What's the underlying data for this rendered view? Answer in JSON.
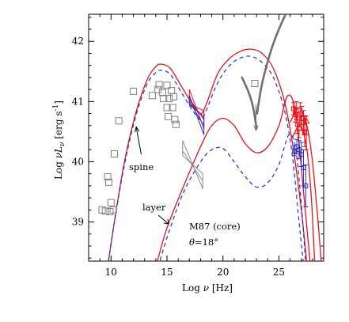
{
  "chart_data": {
    "type": "scatter",
    "title": "",
    "xlabel_prefix": "Log ",
    "xlabel_nu": "ν",
    "xlabel_unit": " [Hz]",
    "ylabel_prefix": "Log ",
    "ylabel_nuL": "νL",
    "ylabel_sub": "ν",
    "ylabel_unit_pre": " [erg s",
    "ylabel_unit_exp": "-1",
    "ylabel_unit_post": "]",
    "xlim": [
      8,
      29
    ],
    "ylim": [
      38.35,
      42.45
    ],
    "x_ticks": [
      10,
      15,
      20,
      25
    ],
    "x_tick_labels": [
      "10",
      "15",
      "20",
      "25"
    ],
    "y_ticks": [
      39,
      40,
      41,
      42
    ],
    "y_tick_labels": [
      "39",
      "40",
      "41",
      "42"
    ],
    "legend": "none",
    "grid": false,
    "colors": {
      "model_total": "#e8101a",
      "model_dashed": "#1f2ed6",
      "data_grey": "#7f7f7f",
      "data_red": "#e8101a",
      "data_blue": "#1f2ed6",
      "axes": "#000000"
    },
    "annotations": {
      "spine": "spine",
      "layer": "layer",
      "source": "M87 (core)",
      "theta_symbol": "θ",
      "theta_value": "=18°"
    },
    "series": [
      {
        "style": "solid-red",
        "points": [
          [
            9.5,
            38.0
          ],
          [
            10.3,
            39.0
          ],
          [
            11.2,
            40.0
          ],
          [
            12.2,
            40.8
          ],
          [
            13.2,
            41.35
          ],
          [
            14.0,
            41.58
          ],
          [
            14.5,
            41.62
          ],
          [
            15.3,
            41.55
          ],
          [
            16.3,
            41.25
          ],
          [
            17.3,
            40.95
          ],
          [
            18.0,
            40.8
          ],
          [
            18.5,
            40.95
          ],
          [
            19.5,
            41.45
          ],
          [
            20.5,
            41.7
          ],
          [
            21.5,
            41.83
          ],
          [
            22.5,
            41.87
          ],
          [
            23.5,
            41.8
          ],
          [
            24.5,
            41.55
          ],
          [
            25.5,
            41.0
          ],
          [
            26.3,
            40.2
          ],
          [
            27.0,
            39.2
          ],
          [
            27.5,
            38.3
          ]
        ]
      },
      {
        "style": "dashed-blue",
        "points": [
          [
            9.5,
            38.0
          ],
          [
            10.3,
            39.0
          ],
          [
            11.2,
            39.95
          ],
          [
            12.2,
            40.75
          ],
          [
            13.2,
            41.28
          ],
          [
            14.0,
            41.48
          ],
          [
            14.5,
            41.52
          ],
          [
            15.3,
            41.45
          ],
          [
            16.3,
            41.15
          ],
          [
            17.3,
            40.85
          ],
          [
            18.0,
            40.7
          ],
          [
            18.5,
            40.85
          ],
          [
            19.5,
            41.3
          ],
          [
            20.5,
            41.58
          ],
          [
            21.5,
            41.72
          ],
          [
            22.5,
            41.75
          ],
          [
            23.5,
            41.65
          ],
          [
            24.5,
            41.4
          ],
          [
            25.5,
            40.85
          ],
          [
            26.2,
            40.1
          ],
          [
            26.8,
            39.0
          ],
          [
            27.2,
            38.3
          ]
        ]
      },
      {
        "style": "solid-red",
        "points": [
          [
            14.0,
            38.25
          ],
          [
            15.0,
            38.9
          ],
          [
            16.5,
            39.6
          ],
          [
            18.0,
            40.25
          ],
          [
            19.0,
            40.6
          ],
          [
            20.0,
            40.72
          ],
          [
            21.0,
            40.6
          ],
          [
            22.0,
            40.3
          ],
          [
            23.0,
            40.15
          ],
          [
            24.0,
            40.25
          ],
          [
            25.0,
            40.6
          ],
          [
            25.8,
            41.1
          ],
          [
            26.5,
            40.8
          ],
          [
            27.2,
            39.5
          ],
          [
            27.8,
            38.3
          ]
        ]
      },
      {
        "style": "dashed-blue",
        "points": [
          [
            14.2,
            38.25
          ],
          [
            15.2,
            38.85
          ],
          [
            16.5,
            39.5
          ],
          [
            18.0,
            40.0
          ],
          [
            19.0,
            40.2
          ],
          [
            20.0,
            40.22
          ],
          [
            21.0,
            40.0
          ],
          [
            22.0,
            39.75
          ],
          [
            23.0,
            39.58
          ],
          [
            24.0,
            39.65
          ],
          [
            25.0,
            39.95
          ],
          [
            25.9,
            40.45
          ],
          [
            26.5,
            40.2
          ],
          [
            27.0,
            39.3
          ],
          [
            27.4,
            38.3
          ]
        ]
      },
      {
        "style": "solid-red",
        "points": [
          [
            26.0,
            40.65
          ],
          [
            26.8,
            40.9
          ],
          [
            27.5,
            40.6
          ],
          [
            28.0,
            40.0
          ],
          [
            28.5,
            39.0
          ],
          [
            28.8,
            38.3
          ]
        ]
      },
      {
        "style": "solid-red",
        "points": [
          [
            26.2,
            40.4
          ],
          [
            26.9,
            40.6
          ],
          [
            27.5,
            40.2
          ],
          [
            27.9,
            39.4
          ],
          [
            28.2,
            38.3
          ]
        ]
      },
      {
        "style": "thick-grey",
        "points": [
          [
            23.05,
            40.8
          ],
          [
            23.5,
            41.3
          ],
          [
            24.3,
            41.85
          ],
          [
            25.0,
            42.2
          ],
          [
            25.6,
            42.45
          ]
        ]
      },
      {
        "style": "thick-grey",
        "points": [
          [
            21.7,
            41.4
          ],
          [
            22.3,
            41.15
          ],
          [
            22.7,
            40.9
          ],
          [
            23.0,
            40.55
          ]
        ]
      }
    ],
    "grey_squares": [
      [
        9.2,
        39.2
      ],
      [
        9.5,
        39.18
      ],
      [
        9.7,
        39.75
      ],
      [
        9.8,
        39.66
      ],
      [
        9.9,
        39.17
      ],
      [
        10.0,
        39.32
      ],
      [
        10.2,
        39.2
      ],
      [
        10.3,
        40.13
      ],
      [
        10.7,
        40.68
      ],
      [
        12.0,
        41.17
      ],
      [
        13.7,
        41.1
      ],
      [
        14.2,
        41.2
      ],
      [
        14.3,
        41.28
      ],
      [
        14.6,
        41.15
      ],
      [
        14.7,
        41.05
      ],
      [
        15.0,
        41.27
      ],
      [
        15.0,
        40.9
      ],
      [
        15.1,
        40.75
      ],
      [
        15.2,
        41.05
      ],
      [
        15.4,
        41.18
      ],
      [
        15.5,
        40.9
      ],
      [
        15.6,
        41.08
      ],
      [
        15.7,
        40.7
      ],
      [
        15.8,
        40.62
      ],
      [
        22.85,
        41.3
      ]
    ],
    "red_points": [
      {
        "x": 26.3,
        "y": 40.88,
        "err": 0.1
      },
      {
        "x": 26.45,
        "y": 40.78,
        "err": 0.12
      },
      {
        "x": 26.55,
        "y": 40.85,
        "err": 0.15
      },
      {
        "x": 26.65,
        "y": 40.62,
        "err": 0.15
      },
      {
        "x": 26.8,
        "y": 40.55,
        "err": 0.15
      },
      {
        "x": 26.9,
        "y": 40.8,
        "err": 0.18
      },
      {
        "x": 27.05,
        "y": 40.72,
        "err": 0.2
      },
      {
        "x": 27.2,
        "y": 40.65,
        "err": 0.2
      },
      {
        "x": 27.3,
        "y": 40.5,
        "err": 0.25
      },
      {
        "x": 27.45,
        "y": 40.48,
        "err": 0.28
      }
    ],
    "red_triangles": [
      [
        26.75,
        40.78
      ],
      [
        27.1,
        40.73
      ],
      [
        27.45,
        40.68
      ]
    ],
    "blue_points": [
      {
        "x": 26.4,
        "y": 40.18,
        "err": 0.08
      },
      {
        "x": 26.6,
        "y": 40.25,
        "err": 0.12
      },
      {
        "x": 26.8,
        "y": 40.2,
        "err": 0.15
      },
      {
        "x": 27.0,
        "y": 40.12,
        "err": 0.2
      },
      {
        "x": 27.2,
        "y": 39.9,
        "err": 0.3
      },
      {
        "x": 27.4,
        "y": 39.6,
        "err": 0.35
      }
    ],
    "bowties": [
      {
        "color": "#e8101a",
        "x": [
          17.0,
          18.3
        ],
        "y_low": [
          40.95,
          40.55
        ],
        "y_high": [
          41.2,
          40.85
        ],
        "y_cross": [
          41.05,
          40.7
        ]
      },
      {
        "color": "#1f2ed6",
        "x": [
          17.0,
          18.3
        ],
        "y_low": [
          40.95,
          40.45
        ],
        "y_high": [
          41.1,
          40.75
        ],
        "y_cross": [
          41.0,
          40.6
        ]
      },
      {
        "color": "#8c8c8c",
        "x": [
          16.4,
          18.2
        ],
        "y_low": [
          40.1,
          39.55
        ],
        "y_high": [
          40.35,
          39.8
        ],
        "y_cross": [
          40.18,
          39.68
        ]
      }
    ],
    "arrows": [
      {
        "from": [
          12.7,
          40.12
        ],
        "to": [
          12.25,
          40.58
        ]
      },
      {
        "from": [
          22.95,
          40.95
        ],
        "to": [
          22.95,
          40.52
        ]
      }
    ]
  }
}
